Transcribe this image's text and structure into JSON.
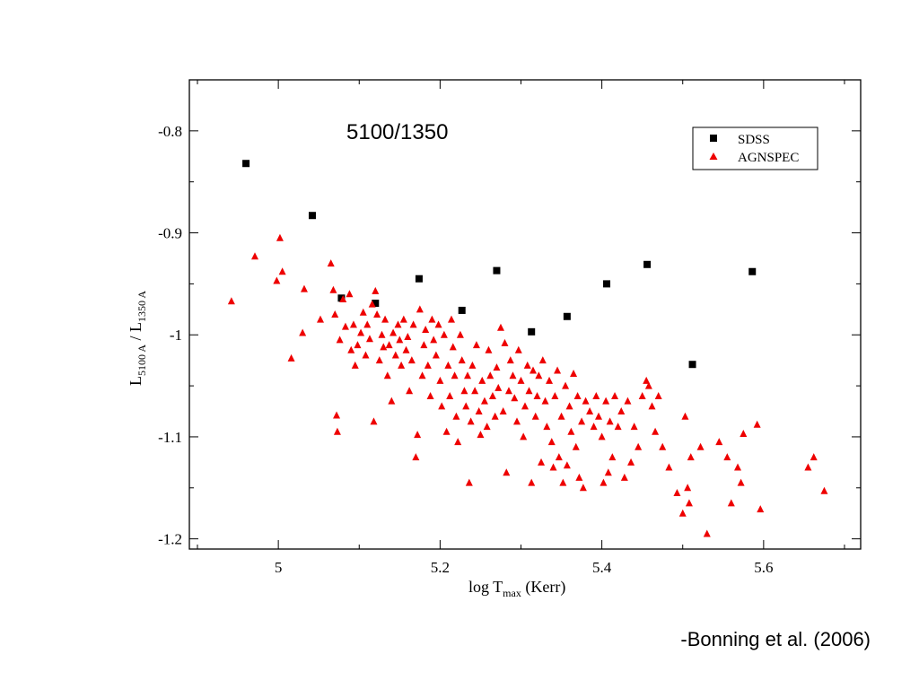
{
  "citation": "-Bonning et al. (2006)",
  "chart_data": {
    "type": "scatter",
    "title": "5100/1350",
    "xlabel": {
      "main": "log T",
      "sub": "max",
      "suffix": " (Kerr)"
    },
    "ylabel": {
      "l1": "L",
      "sub1": "5100 A",
      "mid": " / L",
      "sub2": "1350 A"
    },
    "xlim": [
      4.89,
      5.72
    ],
    "ylim": [
      -1.21,
      -0.75
    ],
    "xticks": [
      5,
      5.2,
      5.4,
      5.6
    ],
    "xtick_labels": [
      "5",
      "5.2",
      "5.4",
      "5.6"
    ],
    "yticks": [
      -0.8,
      -0.9,
      -1.0,
      -1.1,
      -1.2
    ],
    "ytick_labels": [
      "-0.8",
      "-0.9",
      "-1",
      "-1.1",
      "-1.2"
    ],
    "legend_position": "top-right",
    "series": [
      {
        "name": "SDSS",
        "marker": "square",
        "color": "#000000",
        "points": [
          [
            4.96,
            -0.832
          ],
          [
            5.042,
            -0.883
          ],
          [
            5.078,
            -0.964
          ],
          [
            5.12,
            -0.969
          ],
          [
            5.174,
            -0.945
          ],
          [
            5.227,
            -0.976
          ],
          [
            5.27,
            -0.937
          ],
          [
            5.313,
            -0.997
          ],
          [
            5.357,
            -0.982
          ],
          [
            5.406,
            -0.95
          ],
          [
            5.456,
            -0.931
          ],
          [
            5.512,
            -1.029
          ],
          [
            5.586,
            -0.938
          ]
        ]
      },
      {
        "name": "AGNSPEC",
        "marker": "triangle",
        "color": "#ee0000",
        "points": [
          [
            4.942,
            -0.967
          ],
          [
            4.971,
            -0.923
          ],
          [
            4.998,
            -0.947
          ],
          [
            5.002,
            -0.905
          ],
          [
            5.005,
            -0.938
          ],
          [
            5.016,
            -1.023
          ],
          [
            5.03,
            -0.998
          ],
          [
            5.032,
            -0.955
          ],
          [
            5.052,
            -0.985
          ],
          [
            5.065,
            -0.93
          ],
          [
            5.068,
            -0.956
          ],
          [
            5.07,
            -0.98
          ],
          [
            5.072,
            -1.079
          ],
          [
            5.073,
            -1.095
          ],
          [
            5.076,
            -1.005
          ],
          [
            5.08,
            -0.965
          ],
          [
            5.083,
            -0.992
          ],
          [
            5.088,
            -0.96
          ],
          [
            5.09,
            -1.015
          ],
          [
            5.093,
            -0.99
          ],
          [
            5.095,
            -1.03
          ],
          [
            5.098,
            -1.01
          ],
          [
            5.102,
            -0.998
          ],
          [
            5.105,
            -0.978
          ],
          [
            5.108,
            -1.02
          ],
          [
            5.11,
            -0.99
          ],
          [
            5.113,
            -1.004
          ],
          [
            5.116,
            -0.97
          ],
          [
            5.118,
            -1.085
          ],
          [
            5.12,
            -0.957
          ],
          [
            5.122,
            -0.98
          ],
          [
            5.125,
            -1.025
          ],
          [
            5.128,
            -1.0
          ],
          [
            5.13,
            -1.012
          ],
          [
            5.132,
            -0.985
          ],
          [
            5.135,
            -1.04
          ],
          [
            5.137,
            -1.01
          ],
          [
            5.14,
            -1.065
          ],
          [
            5.142,
            -0.998
          ],
          [
            5.145,
            -1.02
          ],
          [
            5.148,
            -0.99
          ],
          [
            5.15,
            -1.005
          ],
          [
            5.152,
            -1.03
          ],
          [
            5.155,
            -0.985
          ],
          [
            5.158,
            -1.015
          ],
          [
            5.16,
            -1.002
          ],
          [
            5.162,
            -1.055
          ],
          [
            5.165,
            -1.025
          ],
          [
            5.167,
            -0.99
          ],
          [
            5.17,
            -1.12
          ],
          [
            5.172,
            -1.098
          ],
          [
            5.175,
            -0.975
          ],
          [
            5.178,
            -1.04
          ],
          [
            5.18,
            -1.01
          ],
          [
            5.182,
            -0.995
          ],
          [
            5.185,
            -1.03
          ],
          [
            5.188,
            -1.06
          ],
          [
            5.19,
            -0.985
          ],
          [
            5.192,
            -1.005
          ],
          [
            5.195,
            -1.02
          ],
          [
            5.198,
            -0.99
          ],
          [
            5.2,
            -1.045
          ],
          [
            5.202,
            -1.07
          ],
          [
            5.205,
            -1.0
          ],
          [
            5.208,
            -1.095
          ],
          [
            5.21,
            -1.03
          ],
          [
            5.212,
            -1.06
          ],
          [
            5.214,
            -0.985
          ],
          [
            5.216,
            -1.012
          ],
          [
            5.218,
            -1.04
          ],
          [
            5.22,
            -1.08
          ],
          [
            5.222,
            -1.105
          ],
          [
            5.225,
            -1.0
          ],
          [
            5.227,
            -1.025
          ],
          [
            5.23,
            -1.055
          ],
          [
            5.232,
            -1.07
          ],
          [
            5.234,
            -1.04
          ],
          [
            5.236,
            -1.145
          ],
          [
            5.238,
            -1.085
          ],
          [
            5.24,
            -1.03
          ],
          [
            5.243,
            -1.055
          ],
          [
            5.245,
            -1.01
          ],
          [
            5.248,
            -1.075
          ],
          [
            5.25,
            -1.098
          ],
          [
            5.252,
            -1.045
          ],
          [
            5.255,
            -1.065
          ],
          [
            5.258,
            -1.09
          ],
          [
            5.26,
            -1.015
          ],
          [
            5.262,
            -1.04
          ],
          [
            5.265,
            -1.06
          ],
          [
            5.268,
            -1.08
          ],
          [
            5.27,
            -1.032
          ],
          [
            5.272,
            -1.052
          ],
          [
            5.275,
            -0.993
          ],
          [
            5.278,
            -1.075
          ],
          [
            5.28,
            -1.008
          ],
          [
            5.282,
            -1.135
          ],
          [
            5.285,
            -1.055
          ],
          [
            5.287,
            -1.025
          ],
          [
            5.29,
            -1.04
          ],
          [
            5.292,
            -1.062
          ],
          [
            5.295,
            -1.085
          ],
          [
            5.297,
            -1.015
          ],
          [
            5.3,
            -1.045
          ],
          [
            5.303,
            -1.1
          ],
          [
            5.305,
            -1.07
          ],
          [
            5.308,
            -1.03
          ],
          [
            5.31,
            -1.055
          ],
          [
            5.313,
            -1.145
          ],
          [
            5.315,
            -1.035
          ],
          [
            5.318,
            -1.08
          ],
          [
            5.32,
            -1.06
          ],
          [
            5.322,
            -1.04
          ],
          [
            5.325,
            -1.125
          ],
          [
            5.327,
            -1.025
          ],
          [
            5.33,
            -1.065
          ],
          [
            5.332,
            -1.09
          ],
          [
            5.335,
            -1.045
          ],
          [
            5.338,
            -1.105
          ],
          [
            5.34,
            -1.13
          ],
          [
            5.342,
            -1.06
          ],
          [
            5.345,
            -1.035
          ],
          [
            5.347,
            -1.12
          ],
          [
            5.35,
            -1.08
          ],
          [
            5.352,
            -1.145
          ],
          [
            5.355,
            -1.05
          ],
          [
            5.357,
            -1.128
          ],
          [
            5.36,
            -1.07
          ],
          [
            5.362,
            -1.095
          ],
          [
            5.365,
            -1.038
          ],
          [
            5.368,
            -1.11
          ],
          [
            5.37,
            -1.06
          ],
          [
            5.372,
            -1.14
          ],
          [
            5.375,
            -1.085
          ],
          [
            5.377,
            -1.15
          ],
          [
            5.38,
            -1.065
          ],
          [
            5.385,
            -1.075
          ],
          [
            5.39,
            -1.09
          ],
          [
            5.393,
            -1.06
          ],
          [
            5.396,
            -1.08
          ],
          [
            5.4,
            -1.1
          ],
          [
            5.402,
            -1.145
          ],
          [
            5.405,
            -1.065
          ],
          [
            5.408,
            -1.135
          ],
          [
            5.41,
            -1.085
          ],
          [
            5.413,
            -1.12
          ],
          [
            5.416,
            -1.06
          ],
          [
            5.42,
            -1.09
          ],
          [
            5.424,
            -1.075
          ],
          [
            5.428,
            -1.14
          ],
          [
            5.432,
            -1.065
          ],
          [
            5.436,
            -1.125
          ],
          [
            5.44,
            -1.09
          ],
          [
            5.445,
            -1.11
          ],
          [
            5.45,
            -1.06
          ],
          [
            5.455,
            -1.045
          ],
          [
            5.458,
            -1.05
          ],
          [
            5.462,
            -1.07
          ],
          [
            5.466,
            -1.095
          ],
          [
            5.47,
            -1.06
          ],
          [
            5.475,
            -1.11
          ],
          [
            5.483,
            -1.13
          ],
          [
            5.493,
            -1.155
          ],
          [
            5.5,
            -1.175
          ],
          [
            5.503,
            -1.08
          ],
          [
            5.506,
            -1.15
          ],
          [
            5.508,
            -1.165
          ],
          [
            5.51,
            -1.12
          ],
          [
            5.522,
            -1.11
          ],
          [
            5.53,
            -1.195
          ],
          [
            5.545,
            -1.105
          ],
          [
            5.555,
            -1.12
          ],
          [
            5.56,
            -1.165
          ],
          [
            5.568,
            -1.13
          ],
          [
            5.572,
            -1.145
          ],
          [
            5.575,
            -1.097
          ],
          [
            5.592,
            -1.088
          ],
          [
            5.596,
            -1.171
          ],
          [
            5.655,
            -1.13
          ],
          [
            5.662,
            -1.12
          ],
          [
            5.675,
            -1.153
          ]
        ]
      }
    ]
  }
}
